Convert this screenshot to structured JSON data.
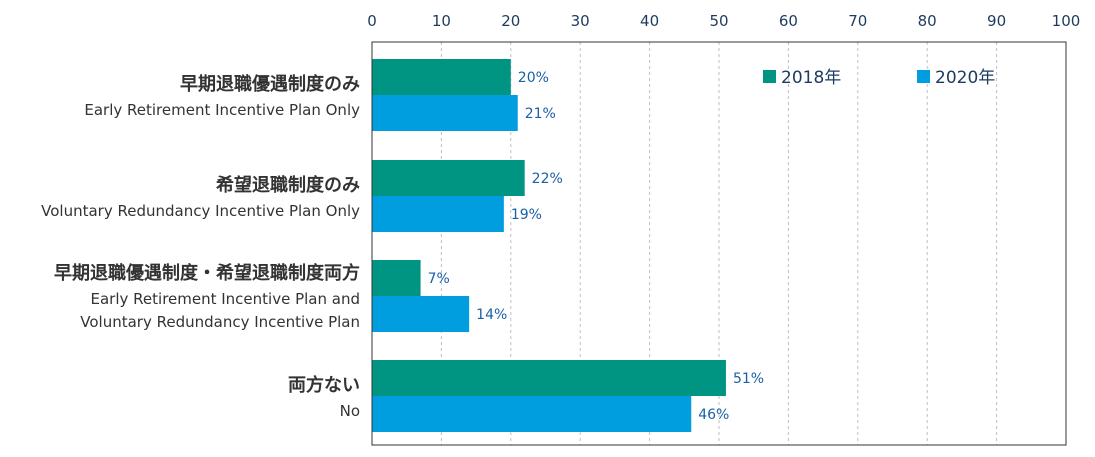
{
  "chart_data": {
    "type": "bar",
    "orientation": "horizontal",
    "xlim": [
      0,
      100
    ],
    "ticks": [
      0,
      10,
      20,
      30,
      40,
      50,
      60,
      70,
      80,
      90,
      100
    ],
    "grid": true,
    "legend_position": "top-right",
    "value_suffix": "%",
    "categories": [
      {
        "ja": "早期退職優遇制度のみ",
        "en": [
          "Early Retirement Incentive Plan Only"
        ]
      },
      {
        "ja": "希望退職制度のみ",
        "en": [
          "Voluntary Redundancy Incentive Plan Only"
        ]
      },
      {
        "ja": "早期退職優遇制度・希望退職制度両方",
        "en": [
          "Early Retirement Incentive Plan and",
          "Voluntary Redundancy Incentive Plan"
        ]
      },
      {
        "ja": "両方ない",
        "en": [
          "No"
        ]
      }
    ],
    "series": [
      {
        "name": "2018年",
        "color": "#009483",
        "values": [
          20,
          22,
          7,
          51
        ]
      },
      {
        "name": "2020年",
        "color": "#009ddf",
        "values": [
          21,
          19,
          14,
          46
        ]
      }
    ]
  }
}
